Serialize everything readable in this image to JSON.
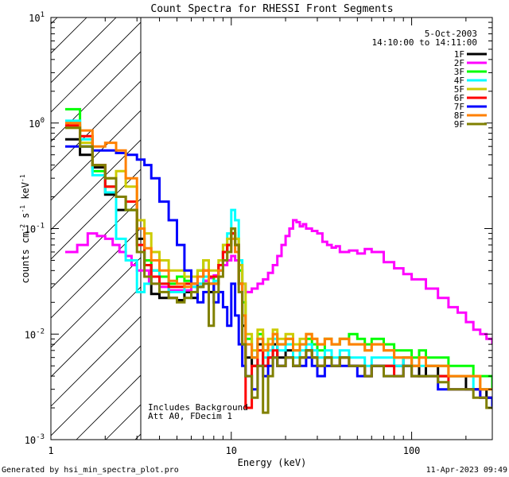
{
  "chart_data": {
    "type": "line",
    "title": "Count Spectra for RHESSI Front Segments",
    "xlabel": "Energy (keV)",
    "ylabel_main": "counts cm",
    "ylabel_exp1": "-2",
    "ylabel_mid": " s",
    "ylabel_exp2": "-1",
    "ylabel_end": " keV",
    "ylabel_exp3": "-1",
    "xscale": "log",
    "yscale": "log",
    "xlim": [
      1,
      280
    ],
    "ylim": [
      0.001,
      10
    ],
    "x_ticks": [
      {
        "value": 1,
        "label": "1"
      },
      {
        "value": 10,
        "label": "10"
      },
      {
        "value": 100,
        "label": "100"
      }
    ],
    "y_ticks": [
      {
        "value": 0.001,
        "base": "10",
        "exp": "-3"
      },
      {
        "value": 0.01,
        "base": "10",
        "exp": "-2"
      },
      {
        "value": 0.1,
        "base": "10",
        "exp": "-1"
      },
      {
        "value": 1,
        "base": "10",
        "exp": "0"
      },
      {
        "value": 10,
        "base": "10",
        "exp": "1"
      }
    ],
    "hatched_region_kev": [
      1,
      3
    ],
    "date": "5-Oct-2003",
    "time_range": "14:10:00 to 14:11:00",
    "notes": [
      "Includes Background",
      "Att A0, FDecim 1"
    ],
    "series": [
      {
        "name": "1F",
        "color": "#000000",
        "x": [
          1.2,
          1.45,
          1.7,
          2.0,
          2.3,
          2.6,
          3.0,
          3.3,
          3.6,
          4.0,
          4.5,
          5.0,
          5.5,
          6.0,
          6.5,
          7.0,
          7.5,
          8.0,
          8.5,
          9.0,
          9.5,
          10,
          10.5,
          11,
          11.5,
          12,
          13,
          14,
          15,
          16,
          17,
          18,
          20,
          22,
          24,
          26,
          28,
          30,
          33,
          36,
          40,
          45,
          50,
          55,
          60,
          70,
          80,
          90,
          100,
          110,
          120,
          140,
          160,
          180,
          200,
          220,
          240,
          260,
          280
        ],
        "y": [
          0.7,
          0.5,
          0.38,
          0.21,
          0.15,
          0.15,
          0.08,
          0.045,
          0.024,
          0.022,
          0.022,
          0.021,
          0.025,
          0.022,
          0.028,
          0.032,
          0.025,
          0.03,
          0.045,
          0.06,
          0.07,
          0.09,
          0.07,
          0.03,
          0.012,
          0.006,
          0.005,
          0.008,
          0.005,
          0.006,
          0.008,
          0.006,
          0.007,
          0.005,
          0.006,
          0.007,
          0.006,
          0.005,
          0.006,
          0.005,
          0.006,
          0.005,
          0.005,
          0.004,
          0.005,
          0.005,
          0.005,
          0.006,
          0.005,
          0.004,
          0.005,
          0.004,
          0.004,
          0.004,
          0.003,
          0.003,
          0.003,
          0.0025,
          0.0025
        ]
      },
      {
        "name": "2F",
        "color": "#ff00ff",
        "x": [
          1.2,
          1.4,
          1.6,
          1.8,
          2.0,
          2.2,
          2.4,
          2.6,
          2.8,
          3.0,
          3.5,
          4.0,
          4.5,
          5.0,
          5.5,
          6.0,
          6.5,
          7.0,
          7.5,
          8.0,
          8.5,
          9.0,
          9.5,
          10,
          10.5,
          11,
          11.5,
          12,
          13,
          14,
          15,
          16,
          17,
          18,
          19,
          20,
          21,
          22,
          23,
          24,
          25,
          26,
          28,
          30,
          32,
          34,
          36,
          38,
          40,
          45,
          50,
          55,
          60,
          70,
          80,
          90,
          100,
          120,
          140,
          160,
          180,
          200,
          220,
          240,
          260,
          280
        ],
        "y": [
          0.06,
          0.07,
          0.09,
          0.085,
          0.08,
          0.07,
          0.06,
          0.055,
          0.045,
          0.04,
          0.03,
          0.028,
          0.026,
          0.026,
          0.026,
          0.028,
          0.03,
          0.032,
          0.034,
          0.036,
          0.04,
          0.045,
          0.05,
          0.055,
          0.05,
          0.045,
          0.03,
          0.025,
          0.027,
          0.03,
          0.033,
          0.038,
          0.045,
          0.055,
          0.07,
          0.085,
          0.1,
          0.12,
          0.115,
          0.105,
          0.11,
          0.1,
          0.095,
          0.09,
          0.075,
          0.07,
          0.066,
          0.068,
          0.06,
          0.062,
          0.058,
          0.064,
          0.06,
          0.048,
          0.042,
          0.037,
          0.033,
          0.027,
          0.022,
          0.018,
          0.016,
          0.013,
          0.011,
          0.01,
          0.009,
          0.008
        ]
      },
      {
        "name": "3F",
        "color": "#00ff00",
        "x": [
          1.2,
          1.45,
          1.7,
          2.0,
          2.3,
          2.6,
          3.0,
          3.3,
          3.6,
          4.0,
          4.5,
          5.0,
          5.5,
          6.0,
          6.5,
          7.0,
          7.5,
          8.0,
          8.5,
          9.0,
          9.5,
          10,
          10.5,
          11,
          11.5,
          12,
          13,
          14,
          15,
          16,
          17,
          18,
          20,
          22,
          24,
          26,
          28,
          30,
          33,
          36,
          40,
          45,
          50,
          55,
          60,
          70,
          80,
          90,
          100,
          110,
          120,
          140,
          160,
          180,
          200,
          220,
          240,
          260,
          280
        ],
        "y": [
          1.35,
          0.6,
          0.35,
          0.25,
          0.2,
          0.15,
          0.1,
          0.05,
          0.04,
          0.035,
          0.03,
          0.035,
          0.032,
          0.035,
          0.04,
          0.05,
          0.03,
          0.035,
          0.045,
          0.06,
          0.07,
          0.1,
          0.08,
          0.04,
          0.02,
          0.009,
          0.006,
          0.01,
          0.007,
          0.008,
          0.01,
          0.008,
          0.009,
          0.007,
          0.008,
          0.009,
          0.008,
          0.007,
          0.009,
          0.008,
          0.009,
          0.01,
          0.009,
          0.008,
          0.009,
          0.008,
          0.007,
          0.007,
          0.006,
          0.007,
          0.006,
          0.006,
          0.005,
          0.005,
          0.005,
          0.004,
          0.004,
          0.004,
          0.003
        ]
      },
      {
        "name": "4F",
        "color": "#00ffff",
        "x": [
          1.2,
          1.45,
          1.7,
          2.0,
          2.3,
          2.6,
          3.0,
          3.3,
          3.6,
          4.0,
          4.5,
          5.0,
          5.5,
          6.0,
          6.5,
          7.0,
          7.5,
          8.0,
          8.5,
          9.0,
          9.5,
          10,
          10.5,
          11,
          11.5,
          12,
          13,
          14,
          15,
          16,
          17,
          18,
          20,
          22,
          24,
          26,
          28,
          30,
          33,
          36,
          40,
          45,
          50,
          55,
          60,
          70,
          80,
          90,
          100,
          110,
          120,
          140,
          160,
          180,
          200,
          220,
          240,
          260,
          280
        ],
        "y": [
          1.05,
          0.7,
          0.32,
          0.22,
          0.08,
          0.05,
          0.025,
          0.03,
          0.04,
          0.03,
          0.025,
          0.025,
          0.03,
          0.028,
          0.03,
          0.035,
          0.03,
          0.032,
          0.04,
          0.07,
          0.09,
          0.15,
          0.12,
          0.05,
          0.015,
          0.008,
          0.006,
          0.009,
          0.006,
          0.007,
          0.009,
          0.007,
          0.008,
          0.006,
          0.007,
          0.008,
          0.007,
          0.006,
          0.007,
          0.006,
          0.007,
          0.006,
          0.006,
          0.005,
          0.006,
          0.006,
          0.005,
          0.006,
          0.005,
          0.005,
          0.005,
          0.005,
          0.004,
          0.004,
          0.004,
          0.003,
          0.003,
          0.003,
          0.003
        ]
      },
      {
        "name": "5F",
        "color": "#cccc00",
        "x": [
          1.2,
          1.45,
          1.7,
          2.0,
          2.3,
          2.6,
          3.0,
          3.3,
          3.6,
          4.0,
          4.5,
          5.0,
          5.5,
          6.0,
          6.5,
          7.0,
          7.5,
          8.0,
          8.5,
          9.0,
          9.5,
          10,
          10.5,
          11,
          11.5,
          12,
          13,
          14,
          15,
          16,
          17,
          18,
          20,
          22,
          24,
          26,
          28,
          30,
          33,
          36,
          40,
          45,
          50,
          55,
          60,
          70,
          80,
          90,
          100,
          110,
          120,
          140,
          160,
          180,
          200,
          220,
          240,
          260,
          280
        ],
        "y": [
          0.9,
          0.65,
          0.4,
          0.3,
          0.35,
          0.25,
          0.12,
          0.09,
          0.06,
          0.05,
          0.04,
          0.04,
          0.035,
          0.035,
          0.04,
          0.05,
          0.04,
          0.04,
          0.05,
          0.07,
          0.08,
          0.1,
          0.08,
          0.045,
          0.03,
          0.01,
          0.007,
          0.011,
          0.008,
          0.009,
          0.011,
          0.009,
          0.01,
          0.008,
          0.009,
          0.01,
          0.009,
          0.008,
          0.009,
          0.008,
          0.009,
          0.008,
          0.008,
          0.007,
          0.008,
          0.007,
          0.006,
          0.006,
          0.005,
          0.006,
          0.005,
          0.005,
          0.004,
          0.004,
          0.004,
          0.004,
          0.003,
          0.003,
          0.003
        ]
      },
      {
        "name": "6F",
        "color": "#ff0000",
        "x": [
          1.2,
          1.45,
          1.7,
          2.0,
          2.3,
          2.6,
          3.0,
          3.3,
          3.6,
          4.0,
          4.5,
          5.0,
          5.5,
          6.0,
          6.5,
          7.0,
          7.5,
          8.0,
          8.5,
          9.0,
          9.5,
          10,
          10.5,
          11,
          11.5,
          12,
          13,
          14,
          15,
          16,
          17,
          18,
          20,
          22,
          24,
          26,
          28,
          30,
          33,
          36,
          40,
          45,
          50,
          55,
          60,
          70,
          80,
          90,
          100,
          110,
          120,
          140,
          160,
          180,
          200,
          220,
          240,
          260,
          280
        ],
        "y": [
          0.95,
          0.75,
          0.4,
          0.25,
          0.2,
          0.18,
          0.07,
          0.045,
          0.035,
          0.03,
          0.028,
          0.028,
          0.03,
          0.03,
          0.035,
          0.04,
          0.035,
          0.035,
          0.045,
          0.06,
          0.07,
          0.09,
          0.07,
          0.03,
          0.008,
          0.002,
          0.005,
          0.007,
          0.005,
          0.006,
          0.007,
          0.005,
          0.006,
          0.005,
          0.006,
          0.007,
          0.006,
          0.005,
          0.006,
          0.005,
          0.006,
          0.005,
          0.005,
          0.004,
          0.005,
          0.005,
          0.004,
          0.005,
          0.004,
          0.004,
          0.004,
          0.004,
          0.003,
          0.003,
          0.003,
          0.003,
          0.0025,
          0.0025,
          0.002
        ]
      },
      {
        "name": "7F",
        "color": "#0000ff",
        "x": [
          1.2,
          1.45,
          1.7,
          2.0,
          2.3,
          2.6,
          3.0,
          3.3,
          3.6,
          4.0,
          4.5,
          5.0,
          5.5,
          6.0,
          6.5,
          7.0,
          7.5,
          8.0,
          8.5,
          9.0,
          9.5,
          10,
          10.5,
          11,
          11.5,
          12,
          13,
          14,
          15,
          16,
          17,
          18,
          20,
          22,
          24,
          26,
          28,
          30,
          33,
          36,
          40,
          45,
          50,
          55,
          60,
          70,
          80,
          90,
          100,
          110,
          120,
          140,
          160,
          180,
          200,
          220,
          240,
          260,
          280
        ],
        "y": [
          0.6,
          0.6,
          0.55,
          0.55,
          0.52,
          0.5,
          0.45,
          0.4,
          0.3,
          0.18,
          0.12,
          0.07,
          0.04,
          0.03,
          0.02,
          0.025,
          0.03,
          0.02,
          0.025,
          0.018,
          0.012,
          0.03,
          0.015,
          0.008,
          0.005,
          0.004,
          0.003,
          0.005,
          0.004,
          0.005,
          0.006,
          0.005,
          0.006,
          0.005,
          0.005,
          0.006,
          0.005,
          0.004,
          0.005,
          0.005,
          0.005,
          0.005,
          0.004,
          0.004,
          0.005,
          0.004,
          0.004,
          0.005,
          0.004,
          0.004,
          0.004,
          0.003,
          0.003,
          0.003,
          0.003,
          0.003,
          0.0025,
          0.0025,
          0.002
        ]
      },
      {
        "name": "8F",
        "color": "#ff8000",
        "x": [
          1.2,
          1.45,
          1.7,
          2.0,
          2.3,
          2.6,
          3.0,
          3.3,
          3.6,
          4.0,
          4.5,
          5.0,
          5.5,
          6.0,
          6.5,
          7.0,
          7.5,
          8.0,
          8.5,
          9.0,
          9.5,
          10,
          10.5,
          11,
          11.5,
          12,
          13,
          14,
          15,
          16,
          17,
          18,
          20,
          22,
          24,
          26,
          28,
          30,
          33,
          36,
          40,
          45,
          50,
          55,
          60,
          70,
          80,
          90,
          100,
          110,
          120,
          140,
          160,
          180,
          200,
          220,
          240,
          260,
          280
        ],
        "y": [
          1.0,
          0.85,
          0.6,
          0.65,
          0.55,
          0.3,
          0.1,
          0.065,
          0.05,
          0.04,
          0.032,
          0.03,
          0.028,
          0.03,
          0.035,
          0.04,
          0.03,
          0.03,
          0.04,
          0.05,
          0.06,
          0.08,
          0.06,
          0.03,
          0.015,
          0.008,
          0.006,
          0.009,
          0.007,
          0.008,
          0.01,
          0.008,
          0.009,
          0.007,
          0.008,
          0.01,
          0.009,
          0.008,
          0.009,
          0.008,
          0.009,
          0.008,
          0.008,
          0.007,
          0.008,
          0.007,
          0.006,
          0.006,
          0.005,
          0.006,
          0.005,
          0.005,
          0.004,
          0.004,
          0.004,
          0.004,
          0.003,
          0.003,
          0.003
        ]
      },
      {
        "name": "9F",
        "color": "#808000",
        "x": [
          1.2,
          1.45,
          1.7,
          2.0,
          2.3,
          2.6,
          3.0,
          3.3,
          3.6,
          4.0,
          4.5,
          5.0,
          5.5,
          6.0,
          6.5,
          7.0,
          7.5,
          8.0,
          8.5,
          9.0,
          9.5,
          10,
          10.5,
          11,
          11.5,
          12,
          13,
          14,
          15,
          16,
          17,
          18,
          20,
          22,
          24,
          26,
          28,
          30,
          33,
          36,
          40,
          45,
          50,
          55,
          60,
          70,
          80,
          90,
          100,
          110,
          120,
          140,
          160,
          180,
          200,
          220,
          240,
          260,
          280
        ],
        "y": [
          0.9,
          0.6,
          0.4,
          0.3,
          0.2,
          0.15,
          0.06,
          0.035,
          0.03,
          0.025,
          0.022,
          0.02,
          0.022,
          0.025,
          0.028,
          0.03,
          0.012,
          0.025,
          0.035,
          0.05,
          0.06,
          0.1,
          0.07,
          0.025,
          0.008,
          0.004,
          0.0025,
          0.005,
          0.0018,
          0.004,
          0.006,
          0.005,
          0.006,
          0.005,
          0.006,
          0.007,
          0.006,
          0.005,
          0.006,
          0.005,
          0.006,
          0.005,
          0.005,
          0.004,
          0.005,
          0.004,
          0.004,
          0.005,
          0.004,
          0.004,
          0.004,
          0.0035,
          0.003,
          0.003,
          0.003,
          0.0025,
          0.0025,
          0.002,
          0.002
        ]
      }
    ]
  },
  "footer": {
    "generated_by": "Generated by hsi_min_spectra_plot.pro",
    "timestamp": "11-Apr-2023 09:49"
  }
}
